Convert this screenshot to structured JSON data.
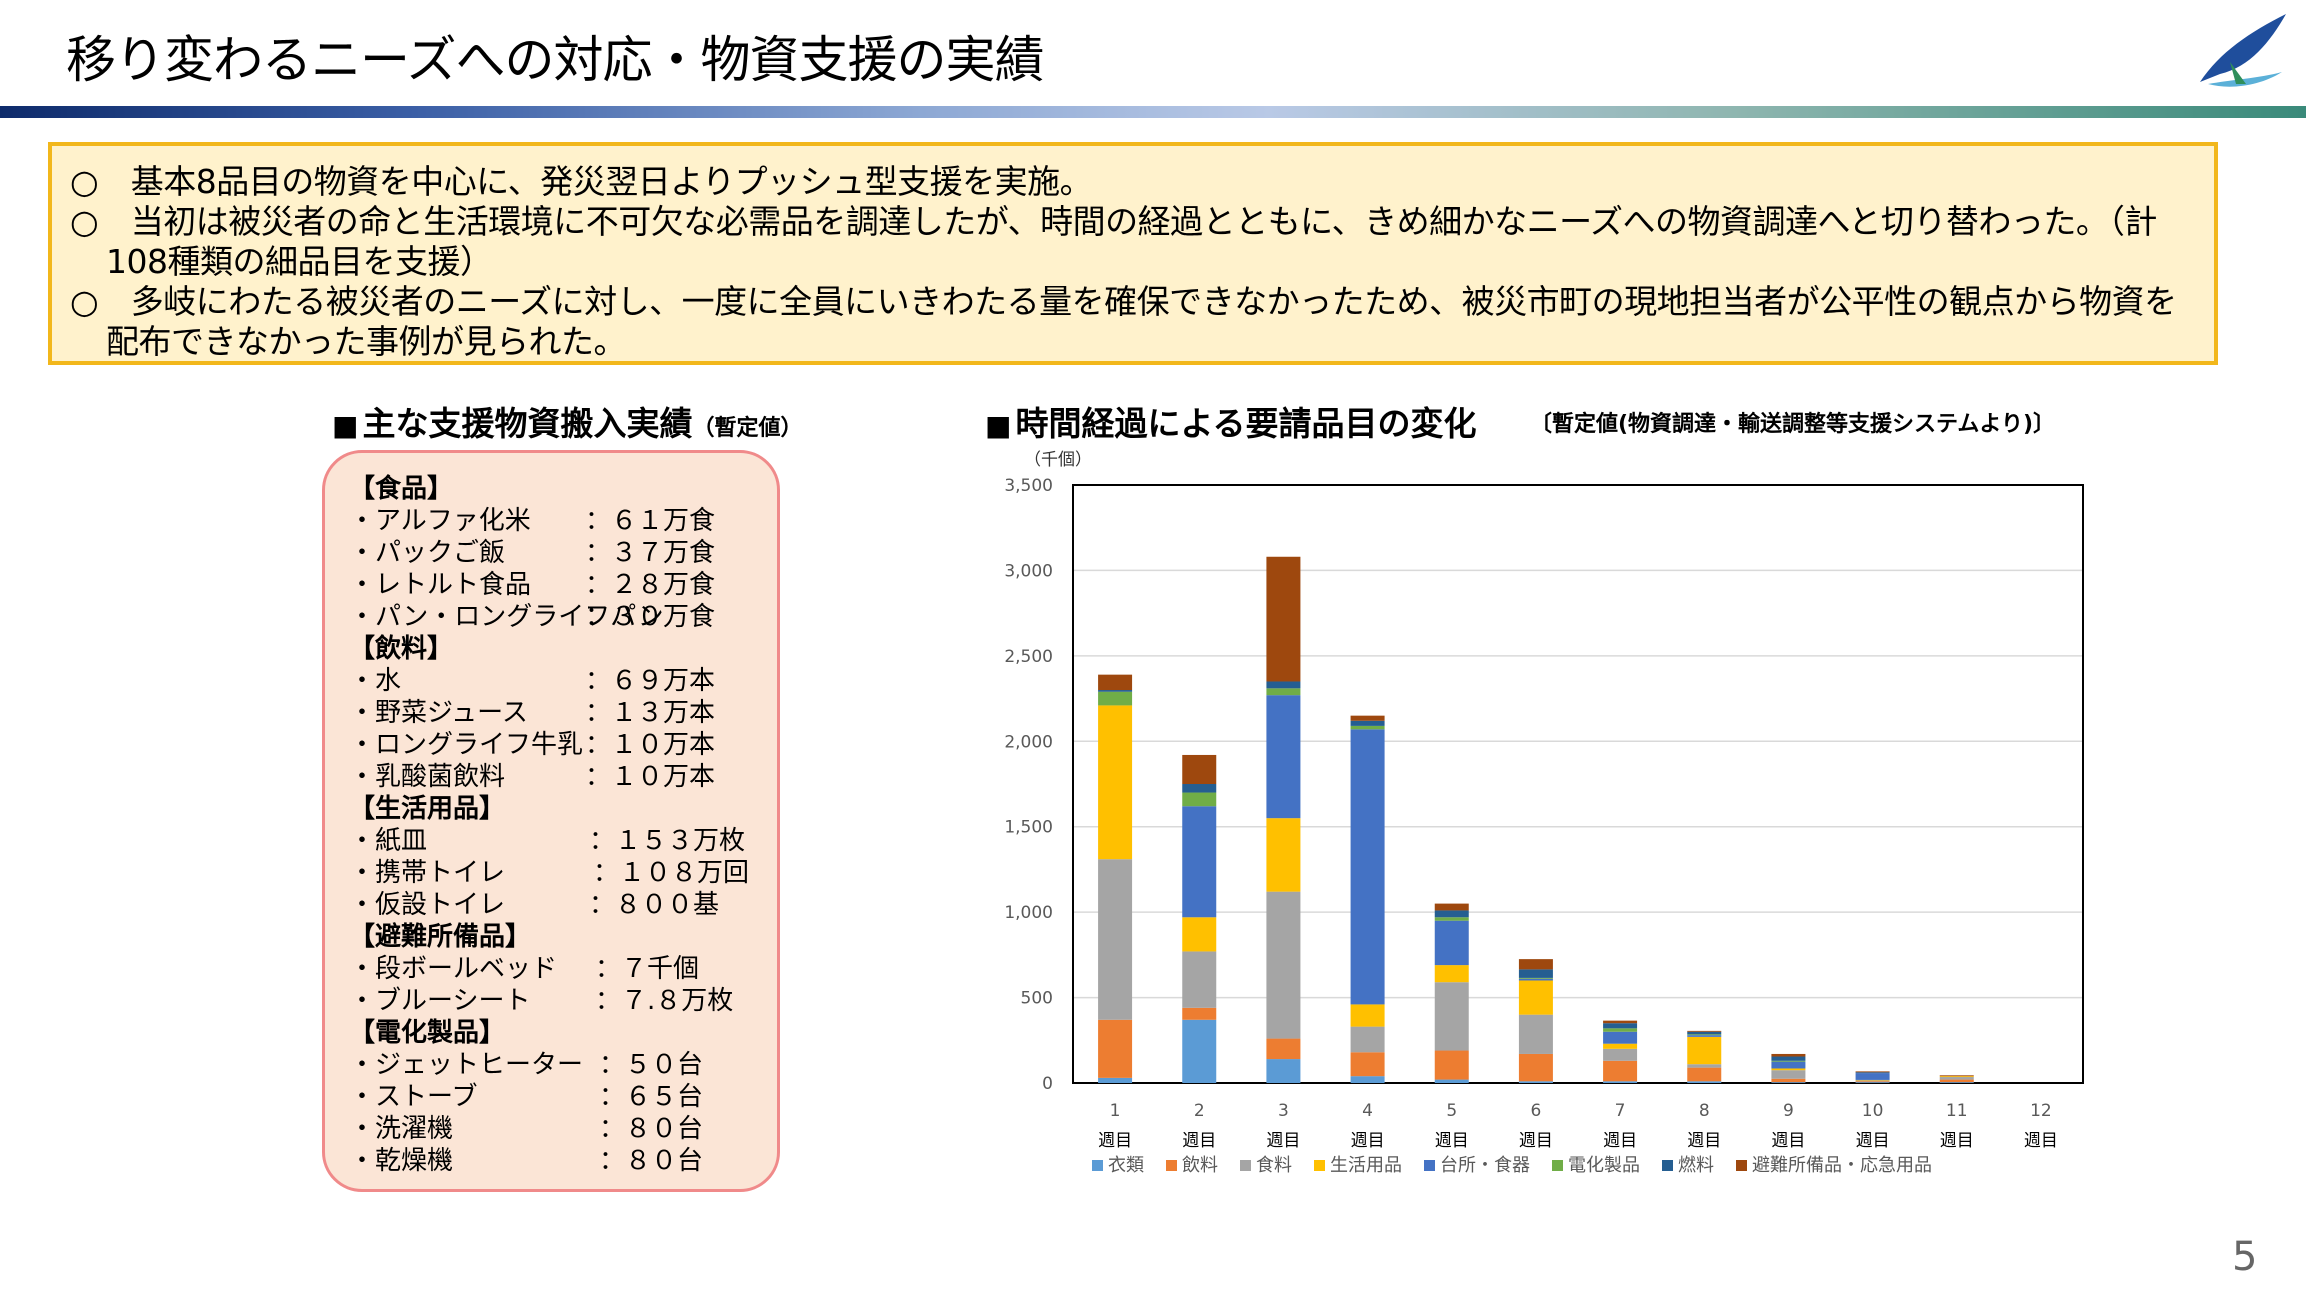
{
  "title": "移り変わるニーズへの対応・物資支援の実績",
  "page_number": "5",
  "summary": [
    "○　基本8品目の物資を中心に、発災翌日よりプッシュ型支援を実施。",
    "○　当初は被災者の命と生活環境に不可欠な必需品を調達したが、時間の経過とともに、きめ細かなニーズへの物資調達へと切り替わった。（計108種類の細品目を支援）",
    "○　多岐にわたる被災者のニーズに対し、一度に全員にいきわたる量を確保できなかったため、被災市町の現地担当者が公平性の観点から物資を配布できなかった事例が見られた。"
  ],
  "left_panel": {
    "heading": "主な支援物資搬入実績",
    "heading_note": "（暫定値）",
    "rows": [
      {
        "type": "cat",
        "label": "【食品】"
      },
      {
        "type": "item",
        "label": "・アルファ化米",
        "value": "：６１万食"
      },
      {
        "type": "item",
        "label": "・パックご飯",
        "value": "：３７万食"
      },
      {
        "type": "item",
        "label": "・レトルト食品",
        "value": "：２８万食"
      },
      {
        "type": "item",
        "label": "・パン・ロングライフパン",
        "value": "：３０万食"
      },
      {
        "type": "cat",
        "label": "【飲料】"
      },
      {
        "type": "item",
        "label": "・水",
        "value": "：６９万本"
      },
      {
        "type": "item",
        "label": "・野菜ジュース",
        "value": "：１３万本"
      },
      {
        "type": "item",
        "label": "・ロングライフ牛乳",
        "value": "：１０万本"
      },
      {
        "type": "item",
        "label": "・乳酸菌飲料",
        "value": "：１０万本"
      },
      {
        "type": "cat",
        "label": "【生活用品】"
      },
      {
        "type": "item",
        "label": "・紙皿",
        "value": "：１５３万枚"
      },
      {
        "type": "item",
        "label": "・携帯トイレ",
        "value": "：１０８万回"
      },
      {
        "type": "item",
        "label": "・仮設トイレ",
        "value": "：８００基"
      },
      {
        "type": "cat",
        "label": "【避難所備品】"
      },
      {
        "type": "item",
        "label": "・段ボールベッド",
        "value": "：７千個"
      },
      {
        "type": "item",
        "label": "・ブルーシート",
        "value": "：７.８万枚"
      },
      {
        "type": "cat",
        "label": "【電化製品】"
      },
      {
        "type": "item",
        "label": "・ジェットヒーター",
        "value": "：５０台"
      },
      {
        "type": "item",
        "label": "・ストーブ",
        "value": "：６５台"
      },
      {
        "type": "item",
        "label": "・洗濯機",
        "value": "：８０台"
      },
      {
        "type": "item",
        "label": "・乾燥機",
        "value": "：８０台"
      }
    ]
  },
  "chart_heading": "時間経過による要請品目の変化",
  "chart_note": "〔暫定値(物資調達・輸送調整等支援システムより)〕",
  "chart_data": {
    "type": "bar",
    "stacked": true,
    "title": "時間経過による要請品目の変化",
    "unit_label": "（千個）",
    "ylim": [
      0,
      3500
    ],
    "yticks": [
      0,
      500,
      1000,
      1500,
      2000,
      2500,
      3000,
      3500
    ],
    "ytick_labels": [
      "0",
      "500",
      "1,000",
      "1,500",
      "2,000",
      "2,500",
      "3,000",
      "3,500"
    ],
    "grid": true,
    "categories": [
      "1",
      "2",
      "3",
      "4",
      "5",
      "6",
      "7",
      "8",
      "9",
      "10",
      "11",
      "12"
    ],
    "category_suffix": "週目",
    "legend_position": "bottom",
    "series": [
      {
        "name": "衣類",
        "color": "#5b9bd5",
        "values": [
          30,
          370,
          140,
          40,
          20,
          10,
          10,
          10,
          5,
          5,
          5,
          0
        ]
      },
      {
        "name": "飲料",
        "color": "#ed7d31",
        "values": [
          340,
          70,
          120,
          140,
          170,
          160,
          120,
          80,
          20,
          5,
          15,
          0
        ]
      },
      {
        "name": "食料",
        "color": "#a5a5a5",
        "values": [
          940,
          330,
          860,
          150,
          400,
          230,
          70,
          20,
          50,
          5,
          15,
          0
        ]
      },
      {
        "name": "生活用品",
        "color": "#ffc000",
        "values": [
          900,
          200,
          430,
          130,
          100,
          200,
          30,
          160,
          10,
          3,
          5,
          0
        ]
      },
      {
        "name": "台所・食器",
        "color": "#4472c4",
        "values": [
          0,
          650,
          720,
          1610,
          260,
          10,
          70,
          10,
          40,
          40,
          0,
          0
        ]
      },
      {
        "name": "電化製品",
        "color": "#70ad47",
        "values": [
          80,
          80,
          40,
          20,
          20,
          5,
          20,
          5,
          5,
          0,
          0,
          0
        ]
      },
      {
        "name": "燃料",
        "color": "#255e91",
        "values": [
          10,
          50,
          40,
          30,
          40,
          50,
          30,
          15,
          25,
          5,
          0,
          0
        ]
      },
      {
        "name": "避難所備品・応急用品",
        "color": "#9e480e",
        "values": [
          90,
          170,
          730,
          30,
          40,
          60,
          15,
          5,
          15,
          5,
          5,
          0
        ]
      }
    ]
  }
}
